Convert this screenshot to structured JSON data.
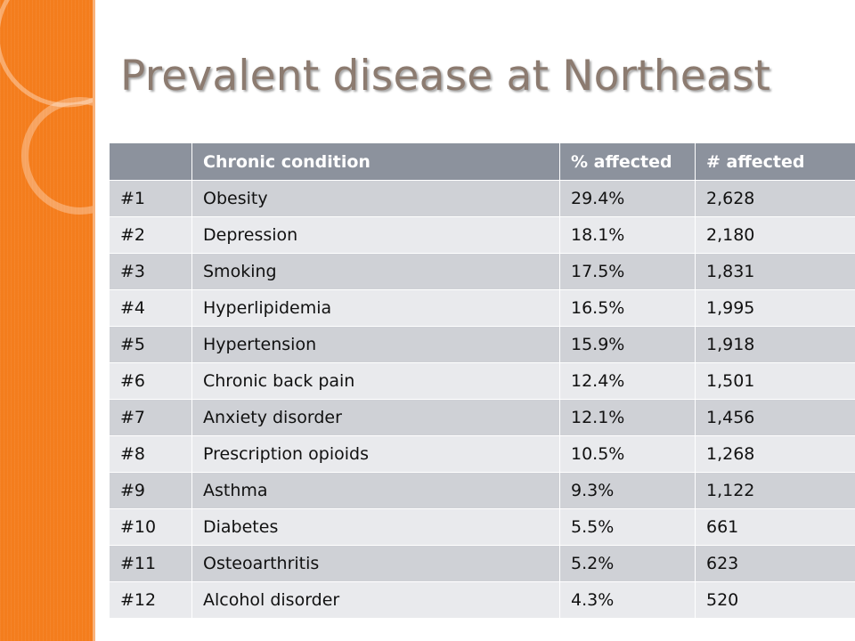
{
  "slide": {
    "title": "Prevalent disease at Northeast",
    "accent_color": "#f47d1d",
    "title_color": "#8c7b70"
  },
  "table": {
    "headers": [
      "",
      "Chronic condition",
      "% affected",
      "# affected"
    ],
    "rows": [
      {
        "rank": "#1",
        "condition": "Obesity",
        "percent": "29.4%",
        "count": "2,628"
      },
      {
        "rank": "#2",
        "condition": "Depression",
        "percent": "18.1%",
        "count": "2,180"
      },
      {
        "rank": "#3",
        "condition": "Smoking",
        "percent": "17.5%",
        "count": "1,831"
      },
      {
        "rank": "#4",
        "condition": "Hyperlipidemia",
        "percent": "16.5%",
        "count": "1,995"
      },
      {
        "rank": "#5",
        "condition": "Hypertension",
        "percent": "15.9%",
        "count": "1,918"
      },
      {
        "rank": "#6",
        "condition": "Chronic back pain",
        "percent": "12.4%",
        "count": "1,501"
      },
      {
        "rank": "#7",
        "condition": "Anxiety disorder",
        "percent": "12.1%",
        "count": "1,456"
      },
      {
        "rank": "#8",
        "condition": "Prescription opioids",
        "percent": "10.5%",
        "count": "1,268"
      },
      {
        "rank": "#9",
        "condition": "Asthma",
        "percent": "9.3%",
        "count": "1,122"
      },
      {
        "rank": "#10",
        "condition": "Diabetes",
        "percent": "5.5%",
        "count": "661"
      },
      {
        "rank": "#11",
        "condition": "Osteoarthritis",
        "percent": "5.2%",
        "count": "623"
      },
      {
        "rank": "#12",
        "condition": "Alcohol disorder",
        "percent": "4.3%",
        "count": "520"
      }
    ]
  }
}
